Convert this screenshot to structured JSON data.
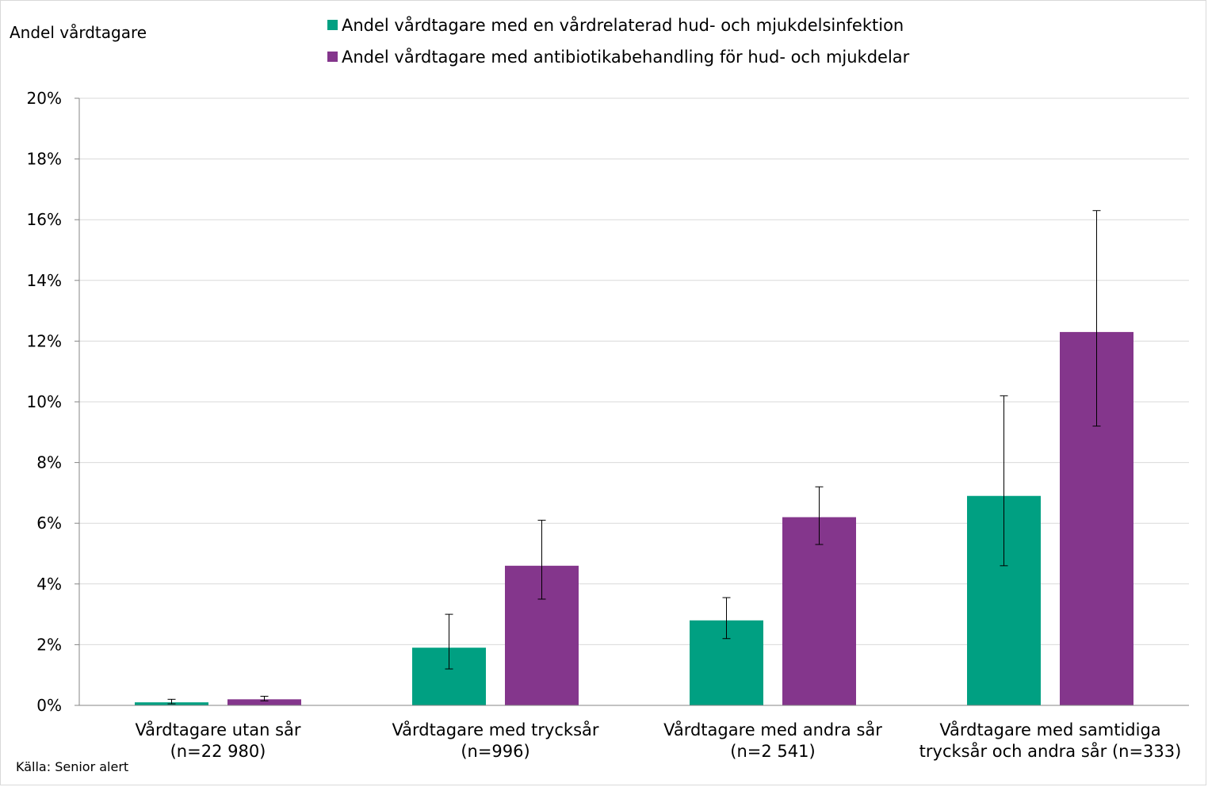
{
  "chart_data": {
    "type": "bar",
    "title": "",
    "ylabel": "Andel vårdtagare",
    "xlabel": "",
    "ylim": [
      0,
      20
    ],
    "yticks": [
      0,
      2,
      4,
      6,
      8,
      10,
      12,
      14,
      16,
      18,
      20
    ],
    "ytick_labels": [
      "0%",
      "2%",
      "4%",
      "6%",
      "8%",
      "10%",
      "12%",
      "14%",
      "16%",
      "18%",
      "20%"
    ],
    "grid": true,
    "legend_position": "top-center",
    "categories": [
      [
        "Vårdtagare utan sår",
        "(n=22 980)"
      ],
      [
        "Vårdtagare med trycksår",
        "(n=996)"
      ],
      [
        "Vårdtagare med andra sår",
        "(n=2 541)"
      ],
      [
        "Vårdtagare med samtidiga",
        "trycksår och andra sår (n=333)"
      ]
    ],
    "series": [
      {
        "name": "Andel vårdtagare med en vårdrelaterad hud- och mjukdelsinfektion",
        "color": "#00a082",
        "values": [
          0.1,
          1.9,
          2.8,
          6.9
        ],
        "error_low": [
          0.05,
          1.2,
          2.2,
          4.6
        ],
        "error_high": [
          0.2,
          3.0,
          3.55,
          10.2
        ]
      },
      {
        "name": "Andel vårdtagare med antibiotikabehandling för hud- och mjukdelar",
        "color": "#84368c",
        "values": [
          0.2,
          4.6,
          6.2,
          12.3
        ],
        "error_low": [
          0.15,
          3.5,
          5.3,
          9.2
        ],
        "error_high": [
          0.3,
          6.1,
          7.2,
          16.3
        ]
      }
    ],
    "source": "Källa: Senior alert"
  }
}
